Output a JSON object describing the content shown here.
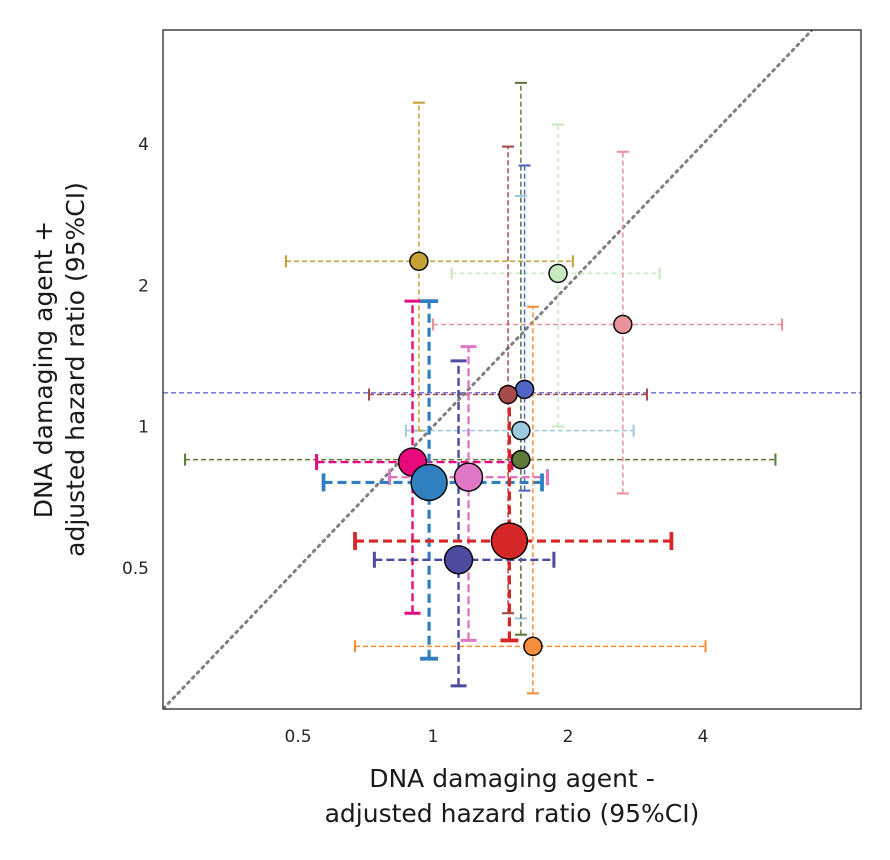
{
  "chart_data": {
    "type": "scatter",
    "xlabel": [
      "DNA damaging agent -",
      "adjusted hazard ratio (95%CI)"
    ],
    "ylabel": [
      "DNA damaging agent +",
      "adjusted hazard ratio (95%CI)"
    ],
    "x_scale": "log2",
    "y_scale": "log2",
    "xlim": [
      0.25,
      9.0
    ],
    "ylim": [
      0.25,
      7.0
    ],
    "x_ticks": [
      {
        "value": 0.5,
        "label": "0.5"
      },
      {
        "value": 1,
        "label": "1"
      },
      {
        "value": 2,
        "label": "2"
      },
      {
        "value": 4,
        "label": "4"
      }
    ],
    "y_ticks": [
      {
        "value": 0.5,
        "label": "0.5"
      },
      {
        "value": 1,
        "label": "1"
      },
      {
        "value": 2,
        "label": "2"
      },
      {
        "value": 4,
        "label": "4"
      }
    ],
    "reference_lines": [
      {
        "type": "diagonal",
        "style": "dotted",
        "color": "#808080",
        "description": "y = x"
      },
      {
        "type": "horizontal",
        "y": 1.18,
        "style": "dashed",
        "color": "#6a6acd"
      }
    ],
    "grid": false,
    "points": [
      {
        "x": 0.93,
        "y": 2.25,
        "x_ci": [
          0.47,
          2.05
        ],
        "y_ci": [
          0.98,
          4.9
        ],
        "color": "#c4a035",
        "size": "small",
        "line_width": "thin"
      },
      {
        "x": 1.9,
        "y": 2.12,
        "x_ci": [
          1.1,
          3.2
        ],
        "y_ci": [
          1.0,
          4.4
        ],
        "color": "#c7e9c0",
        "size": "small",
        "line_width": "thin"
      },
      {
        "x": 2.65,
        "y": 1.65,
        "x_ci": [
          1.0,
          6.0
        ],
        "y_ci": [
          0.72,
          3.85
        ],
        "color": "#e8929a",
        "size": "small",
        "line_width": "thin"
      },
      {
        "x": 1.6,
        "y": 1.2,
        "x_ci": [
          1.58,
          1.62
        ],
        "y_ci": [
          0.73,
          3.6
        ],
        "color": "#5265c7",
        "size": "small",
        "line_width": "thin"
      },
      {
        "x": 1.47,
        "y": 1.17,
        "x_ci": [
          0.72,
          3.0
        ],
        "y_ci": [
          0.4,
          3.95
        ],
        "color": "#a84a4a",
        "size": "small",
        "line_width": "thin"
      },
      {
        "x": 1.57,
        "y": 0.98,
        "x_ci": [
          0.87,
          2.8
        ],
        "y_ci": [
          0.39,
          3.1
        ],
        "color": "#9ecae1",
        "size": "small",
        "line_width": "thin"
      },
      {
        "x": 1.57,
        "y": 0.85,
        "x_ci": [
          0.28,
          5.8
        ],
        "y_ci": [
          0.36,
          5.4
        ],
        "color": "#5d7a3a",
        "size": "small",
        "line_width": "thin"
      },
      {
        "x": 1.67,
        "y": 0.34,
        "x_ci": [
          0.67,
          4.05
        ],
        "y_ci": [
          0.27,
          1.8
        ],
        "color": "#f58d3b",
        "size": "small",
        "line_width": "thin"
      },
      {
        "x": 0.9,
        "y": 0.84,
        "x_ci": [
          0.55,
          1.5
        ],
        "y_ci": [
          0.4,
          1.85
        ],
        "color": "#e8087d",
        "size": "medium",
        "line_width": "medium"
      },
      {
        "x": 1.2,
        "y": 0.78,
        "x_ci": [
          0.8,
          1.8
        ],
        "y_ci": [
          0.35,
          1.48
        ],
        "color": "#df77c4",
        "size": "medium",
        "line_width": "medium"
      },
      {
        "x": 0.98,
        "y": 0.76,
        "x_ci": [
          0.57,
          1.75
        ],
        "y_ci": [
          0.32,
          1.85
        ],
        "color": "#2f7fc1",
        "size": "large",
        "line_width": "thick"
      },
      {
        "x": 1.14,
        "y": 0.52,
        "x_ci": [
          0.74,
          1.86
        ],
        "y_ci": [
          0.28,
          1.38
        ],
        "color": "#4d4ba0",
        "size": "medium",
        "line_width": "medium"
      },
      {
        "x": 1.48,
        "y": 0.57,
        "x_ci": [
          0.67,
          3.4
        ],
        "y_ci": [
          0.35,
          1.2
        ],
        "color": "#d62728",
        "size": "large",
        "line_width": "thick"
      }
    ]
  }
}
